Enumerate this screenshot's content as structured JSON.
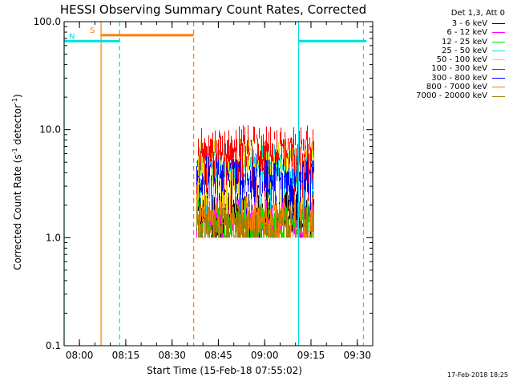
{
  "chart_data": {
    "type": "line",
    "title": "HESSI Observing Summary Count Rates, Corrected",
    "xlabel": "Start Time (15-Feb-18 07:55:02)",
    "ylabel_main": "Corrected Count Rate (s",
    "ylabel_sup1": "-1",
    "ylabel_mid": " detector",
    "ylabel_sup2": "-1",
    "ylabel_end": ")",
    "ylog": true,
    "ylim": [
      0.1,
      100.0
    ],
    "yticks": [
      {
        "value": 0.1,
        "label": "0.1"
      },
      {
        "value": 1.0,
        "label": "1.0"
      },
      {
        "value": 10.0,
        "label": "10.0"
      },
      {
        "value": 100.0,
        "label": "100.0"
      }
    ],
    "xlim": [
      "07:55:02",
      "09:35:00"
    ],
    "xticks": [
      {
        "value": "08:00",
        "label": "08:00"
      },
      {
        "value": "08:15",
        "label": "08:15"
      },
      {
        "value": "08:30",
        "label": "08:30"
      },
      {
        "value": "08:45",
        "label": "08:45"
      },
      {
        "value": "09:00",
        "label": "09:00"
      },
      {
        "value": "09:15",
        "label": "09:15"
      },
      {
        "value": "09:30",
        "label": "09:30"
      }
    ],
    "legend_title": "Det 1,3, Att 0",
    "legend_position": "top-right",
    "data_start": "08:38",
    "data_end": "09:16",
    "series": [
      {
        "name": "3 - 6 keV",
        "color": "#000000",
        "level": 1.6
      },
      {
        "name": "6 - 12 keV",
        "color": "#ff00ff",
        "level": 1.4
      },
      {
        "name": "12 - 25 keV",
        "color": "#00dd00",
        "level": 1.5
      },
      {
        "name": "25 - 50 keV",
        "color": "#00e0e0",
        "level": 4.5
      },
      {
        "name": "50 - 100 keV",
        "color": "#e0e000",
        "level": 5.0
      },
      {
        "name": "100 - 300 keV",
        "color": "#ff0000",
        "level": 6.5
      },
      {
        "name": "300 - 800 keV",
        "color": "#0000ff",
        "level": 3.5
      },
      {
        "name": "800 - 7000 keV",
        "color": "#ff8000",
        "level": 1.5
      },
      {
        "name": "7000 - 20000 keV",
        "color": "#a08000",
        "level": 1.3
      }
    ],
    "markers": [
      {
        "label": "S",
        "color": "#ff8000",
        "start": "08:07",
        "end": "08:37",
        "level": 75
      },
      {
        "label": "N",
        "color": "#00e0e0",
        "start": "07:55:02",
        "end": "08:13",
        "level": 66
      },
      {
        "label": "",
        "color": "#00e0e0",
        "start": "09:11",
        "end": "09:33",
        "level": 66
      }
    ],
    "vlines": [
      {
        "time": "07:55:02",
        "color": "#00e0e0",
        "style": "solid"
      },
      {
        "time": "08:07",
        "color": "#ff8000",
        "style": "solid"
      },
      {
        "time": "08:13",
        "color": "#00e0e0",
        "style": "dashed"
      },
      {
        "time": "08:37",
        "color": "#ff8000",
        "style": "dashed"
      },
      {
        "time": "09:11",
        "color": "#00e0e0",
        "style": "solid"
      },
      {
        "time": "09:32",
        "color": "#00e0e0",
        "style": "dashed"
      }
    ]
  },
  "footer_date": "17-Feb-2018 18:25"
}
